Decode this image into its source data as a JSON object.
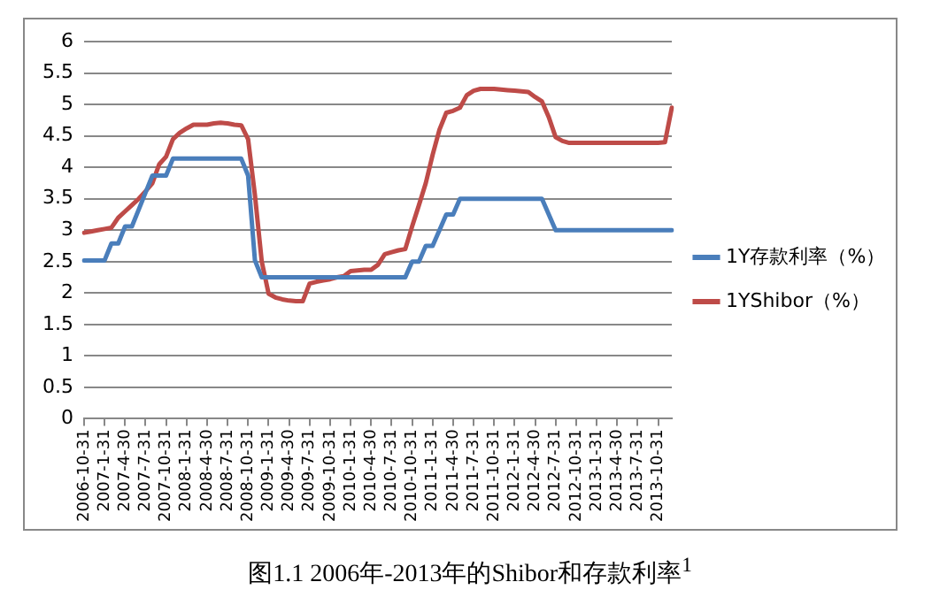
{
  "chart_data": {
    "type": "line",
    "title": "图1.1 2006年-2013年的Shibor和存款利率$^{1}$",
    "categories": [
      "2006-10-31",
      null,
      null,
      "2007-1-31",
      null,
      null,
      "2007-4-30",
      null,
      null,
      "2007-7-31",
      null,
      null,
      "2007-10-31",
      null,
      null,
      "2008-1-31",
      null,
      null,
      "2008-4-30",
      null,
      null,
      "2008-7-31",
      null,
      null,
      "2008-10-31",
      null,
      null,
      "2009-1-31",
      null,
      null,
      "2009-4-30",
      null,
      null,
      "2009-7-31",
      null,
      null,
      "2009-10-31",
      null,
      null,
      "2010-1-31",
      null,
      null,
      "2010-4-30",
      null,
      null,
      "2010-7-31",
      null,
      null,
      "2010-10-31",
      null,
      null,
      "2011-1-31",
      null,
      null,
      "2011-4-30",
      null,
      null,
      "2011-7-31",
      null,
      null,
      "2011-10-31",
      null,
      null,
      "2012-1-31",
      null,
      null,
      "2012-4-30",
      null,
      null,
      "2012-7-31",
      null,
      null,
      "2012-10-31",
      null,
      null,
      "2013-1-31",
      null,
      null,
      "2013-4-30",
      null,
      null,
      "2013-7-31",
      null,
      null,
      "2013-10-31",
      null,
      null
    ],
    "series": [
      {
        "name": "1Y存款利率（%）",
        "color": "#4a7ebb",
        "values": [
          2.52,
          2.52,
          2.52,
          2.52,
          2.79,
          2.79,
          3.06,
          3.06,
          3.33,
          3.6,
          3.87,
          3.87,
          3.87,
          4.14,
          4.14,
          4.14,
          4.14,
          4.14,
          4.14,
          4.14,
          4.14,
          4.14,
          4.14,
          4.14,
          3.87,
          2.52,
          2.25,
          2.25,
          2.25,
          2.25,
          2.25,
          2.25,
          2.25,
          2.25,
          2.25,
          2.25,
          2.25,
          2.25,
          2.25,
          2.25,
          2.25,
          2.25,
          2.25,
          2.25,
          2.25,
          2.25,
          2.25,
          2.25,
          2.5,
          2.5,
          2.75,
          2.75,
          3.0,
          3.25,
          3.25,
          3.5,
          3.5,
          3.5,
          3.5,
          3.5,
          3.5,
          3.5,
          3.5,
          3.5,
          3.5,
          3.5,
          3.5,
          3.5,
          3.25,
          3.0,
          3.0,
          3.0,
          3.0,
          3.0,
          3.0,
          3.0,
          3.0,
          3.0,
          3.0,
          3.0,
          3.0,
          3.0,
          3.0,
          3.0,
          3.0,
          3.0,
          3.0
        ]
      },
      {
        "name": "1YShibor（%）",
        "color": "#be4b48",
        "values": [
          2.96,
          2.98,
          3.0,
          3.02,
          3.04,
          3.2,
          3.3,
          3.4,
          3.5,
          3.62,
          3.75,
          4.05,
          4.17,
          4.45,
          4.55,
          4.62,
          4.68,
          4.68,
          4.68,
          4.7,
          4.71,
          4.7,
          4.68,
          4.67,
          4.45,
          3.56,
          2.5,
          1.99,
          1.93,
          1.9,
          1.88,
          1.87,
          1.87,
          2.15,
          2.18,
          2.2,
          2.22,
          2.25,
          2.27,
          2.35,
          2.36,
          2.37,
          2.37,
          2.45,
          2.62,
          2.65,
          2.68,
          2.7,
          3.06,
          3.4,
          3.75,
          4.2,
          4.6,
          4.87,
          4.9,
          4.95,
          5.15,
          5.22,
          5.25,
          5.25,
          5.25,
          5.24,
          5.23,
          5.22,
          5.21,
          5.2,
          5.12,
          5.05,
          4.8,
          4.48,
          4.42,
          4.39,
          4.39,
          4.39,
          4.39,
          4.39,
          4.39,
          4.39,
          4.39,
          4.39,
          4.39,
          4.39,
          4.39,
          4.39,
          4.39,
          4.4,
          4.95
        ]
      }
    ],
    "ylim": [
      0,
      6
    ],
    "yticks": [
      0,
      0.5,
      1,
      1.5,
      2,
      2.5,
      3,
      3.5,
      4,
      4.5,
      5,
      5.5,
      6
    ],
    "grid": "y",
    "legend": "right",
    "marker": "none",
    "line_style": "solid"
  }
}
